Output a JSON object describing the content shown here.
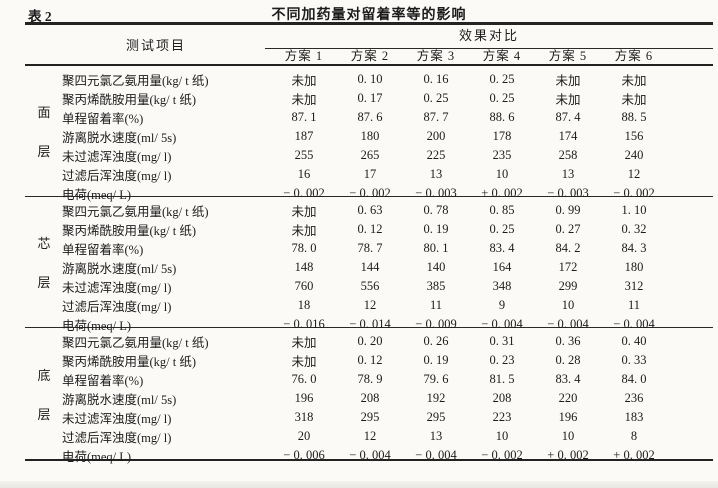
{
  "page": {
    "table_label": "表 2",
    "title": "不同加药量对留着率等的影响"
  },
  "header": {
    "test_item": "测试项目",
    "effect_comparison": "效果对比",
    "schemes": [
      "方案 1",
      "方案 2",
      "方案 3",
      "方案 4",
      "方案 5",
      "方案 6"
    ]
  },
  "row_labels": [
    "聚四元氯乙氨用量(kg/ t 纸)",
    "聚丙烯酰胺用量(kg/ t 纸)",
    "单程留着率(%)",
    "游离脱水速度(ml/ 5s)",
    "未过滤浑浊度(mg/ l)",
    "过滤后浑浊度(mg/ l)",
    "电荷(meq/ L)"
  ],
  "sections": [
    {
      "group": "面层",
      "rows": [
        [
          "未加",
          "0. 10",
          "0. 16",
          "0. 25",
          "未加",
          "未加"
        ],
        [
          "未加",
          "0. 17",
          "0. 25",
          "0. 25",
          "未加",
          "未加"
        ],
        [
          "87. 1",
          "87. 6",
          "87. 7",
          "88. 6",
          "87. 4",
          "88. 5"
        ],
        [
          "187",
          "180",
          "200",
          "178",
          "174",
          "156"
        ],
        [
          "255",
          "265",
          "225",
          "235",
          "258",
          "240"
        ],
        [
          "16",
          "17",
          "13",
          "10",
          "13",
          "12"
        ],
        [
          "− 0. 002",
          "− 0. 002",
          "− 0. 003",
          "+ 0. 002",
          "− 0. 003",
          "− 0. 002"
        ]
      ]
    },
    {
      "group": "芯层",
      "rows": [
        [
          "未加",
          "0. 63",
          "0. 78",
          "0. 85",
          "0. 99",
          "1. 10"
        ],
        [
          "未加",
          "0. 12",
          "0. 19",
          "0. 25",
          "0. 27",
          "0. 32"
        ],
        [
          "78. 0",
          "78. 7",
          "80. 1",
          "83. 4",
          "84. 2",
          "84. 3"
        ],
        [
          "148",
          "144",
          "140",
          "164",
          "172",
          "180"
        ],
        [
          "760",
          "556",
          "385",
          "348",
          "299",
          "312"
        ],
        [
          "18",
          "12",
          "11",
          "9",
          "10",
          "11"
        ],
        [
          "− 0. 016",
          "− 0. 014",
          "− 0. 009",
          "− 0. 004",
          "− 0. 004",
          "− 0. 004"
        ]
      ]
    },
    {
      "group": "底层",
      "rows": [
        [
          "未加",
          "0. 20",
          "0. 26",
          "0. 31",
          "0. 36",
          "0. 40"
        ],
        [
          "未加",
          "0. 12",
          "0. 19",
          "0. 23",
          "0. 28",
          "0. 33"
        ],
        [
          "76. 0",
          "78. 9",
          "79. 6",
          "81. 5",
          "83. 4",
          "84. 0"
        ],
        [
          "196",
          "208",
          "192",
          "208",
          "220",
          "236"
        ],
        [
          "318",
          "295",
          "295",
          "223",
          "196",
          "183"
        ],
        [
          "20",
          "12",
          "13",
          "10",
          "10",
          "8"
        ],
        [
          "− 0. 006",
          "− 0. 004",
          "− 0. 004",
          "− 0. 002",
          "+ 0. 002",
          "+ 0. 002"
        ]
      ]
    }
  ]
}
